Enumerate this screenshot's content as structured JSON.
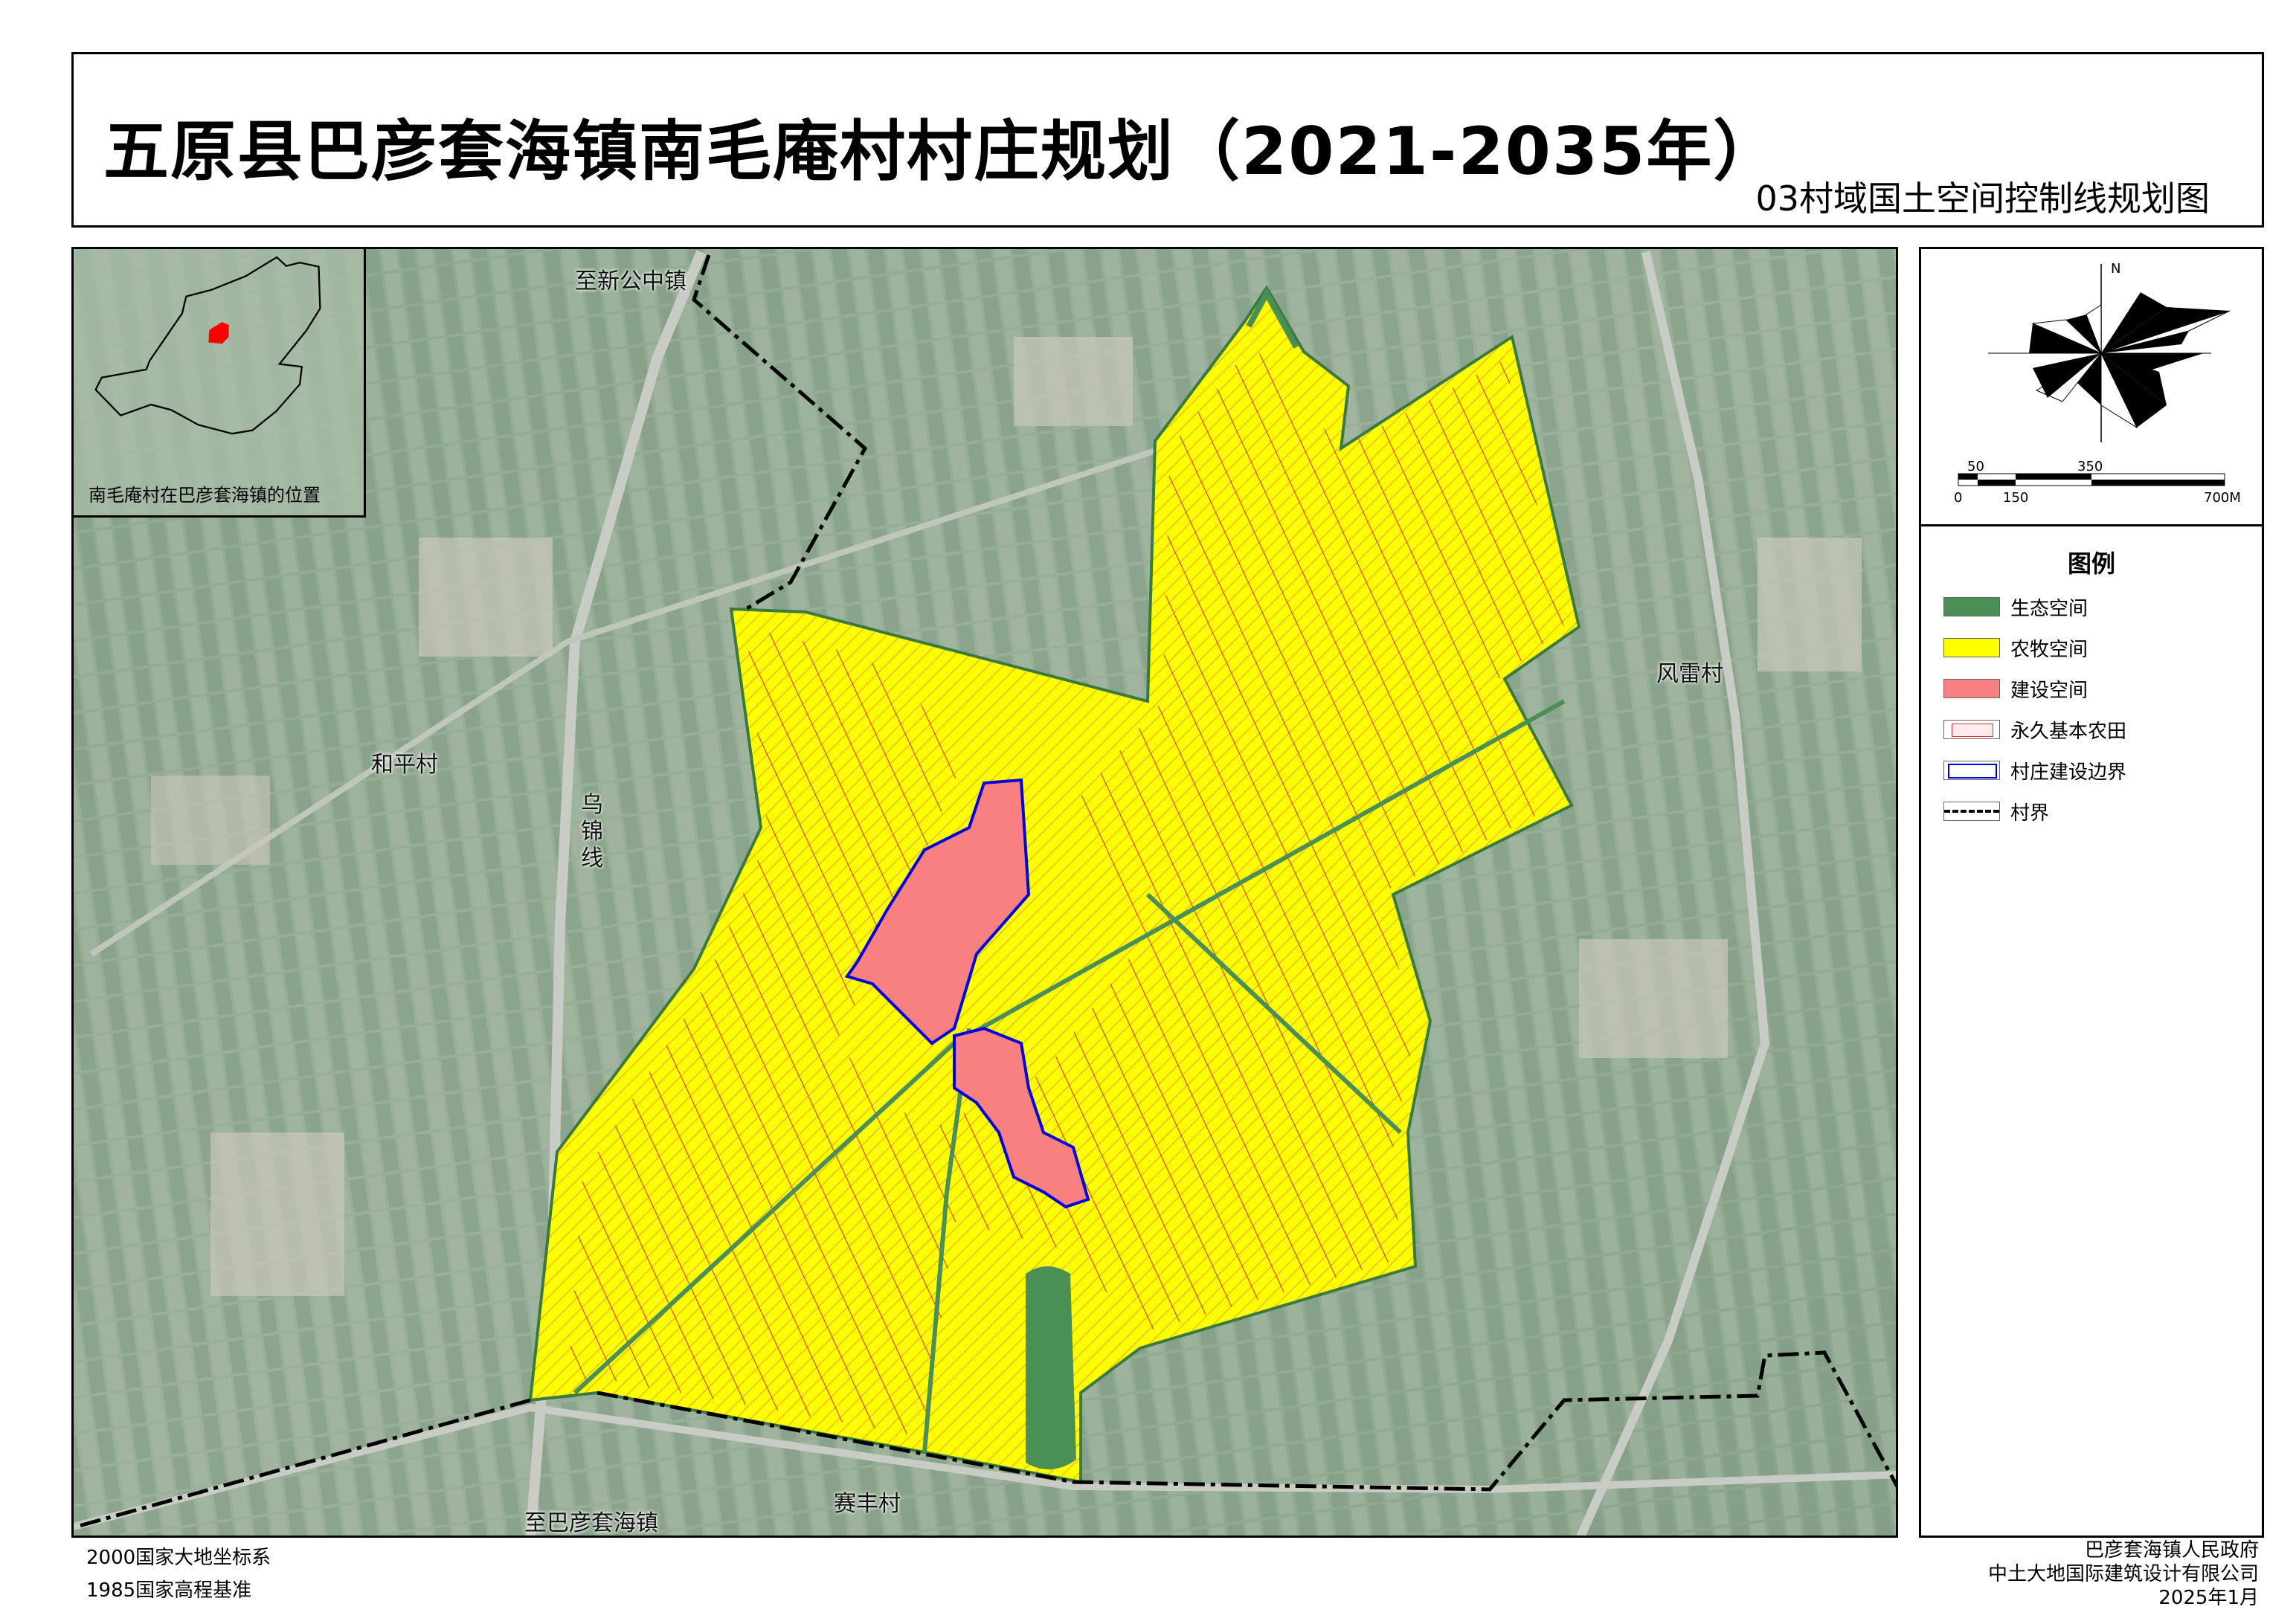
{
  "header": {
    "title": "五原县巴彦套海镇南毛庵村村庄规划（2021-2035年）",
    "subtitle": "03村域国土空间控制线规划图"
  },
  "inset": {
    "caption": "南毛庵村在巴彦套海镇的位置",
    "highlight_color": "#ff0000"
  },
  "map_labels": {
    "north_road": "至新公中镇",
    "west_village": "和平村",
    "road_name": "乌锦线",
    "east_village": "风雷村",
    "south_road": "至巴彦套海镇",
    "south_village": "赛丰村"
  },
  "compass": {
    "north": "N"
  },
  "scale_bar": {
    "top_labels": [
      "50",
      "350"
    ],
    "bottom_labels": [
      "0",
      "150",
      "700M"
    ]
  },
  "legend": {
    "title": "图例",
    "items": [
      {
        "label": "生态空间",
        "color": "#4a8f55",
        "kind": "fill"
      },
      {
        "label": "农牧空间",
        "color": "#ffff00",
        "kind": "fill"
      },
      {
        "label": "建设空间",
        "color": "#f88080",
        "kind": "fill"
      },
      {
        "label": "永久基本农田",
        "color": "#e03030",
        "kind": "hatch-outline"
      },
      {
        "label": "村庄建设边界",
        "color": "#0000dd",
        "kind": "outline"
      },
      {
        "label": "村界",
        "color": "#000000",
        "kind": "dash"
      }
    ]
  },
  "footer": {
    "left": [
      "2000国家大地坐标系",
      "1985国家高程基准"
    ],
    "right": [
      "巴彦套海镇人民政府",
      "中土大地国际建筑设计有限公司",
      "2025年1月"
    ]
  }
}
